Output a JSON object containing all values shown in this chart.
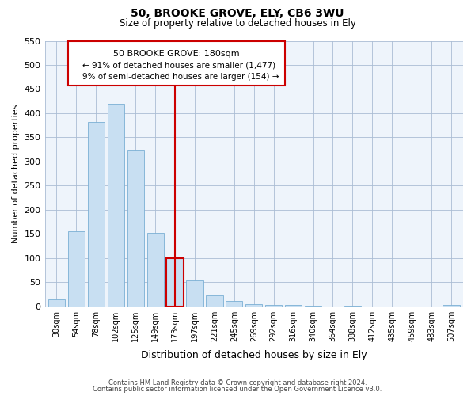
{
  "title": "50, BROOKE GROVE, ELY, CB6 3WU",
  "subtitle": "Size of property relative to detached houses in Ely",
  "xlabel": "Distribution of detached houses by size in Ely",
  "ylabel": "Number of detached properties",
  "bin_labels": [
    "30sqm",
    "54sqm",
    "78sqm",
    "102sqm",
    "125sqm",
    "149sqm",
    "173sqm",
    "197sqm",
    "221sqm",
    "245sqm",
    "269sqm",
    "292sqm",
    "316sqm",
    "340sqm",
    "364sqm",
    "388sqm",
    "412sqm",
    "435sqm",
    "459sqm",
    "483sqm",
    "507sqm"
  ],
  "bar_heights": [
    15,
    155,
    382,
    420,
    323,
    152,
    100,
    54,
    22,
    11,
    4,
    3,
    2,
    1,
    0,
    1,
    0,
    0,
    0,
    0,
    2
  ],
  "bar_color": "#c8dff2",
  "bar_edge_color": "#7aafd4",
  "highlight_bar_index": 6,
  "highlight_bar_color": "#c8dff2",
  "highlight_bar_edge_color": "#cc0000",
  "vline_color": "#cc0000",
  "ylim": [
    0,
    550
  ],
  "yticks": [
    0,
    50,
    100,
    150,
    200,
    250,
    300,
    350,
    400,
    450,
    500,
    550
  ],
  "annotation_title": "50 BROOKE GROVE: 180sqm",
  "annotation_line1": "← 91% of detached houses are smaller (1,477)",
  "annotation_line2": "9% of semi-detached houses are larger (154) →",
  "annotation_box_color": "#ffffff",
  "annotation_box_edge": "#cc0000",
  "footer_line1": "Contains HM Land Registry data © Crown copyright and database right 2024.",
  "footer_line2": "Contains public sector information licensed under the Open Government Licence v3.0.",
  "bg_color": "#eef4fb"
}
